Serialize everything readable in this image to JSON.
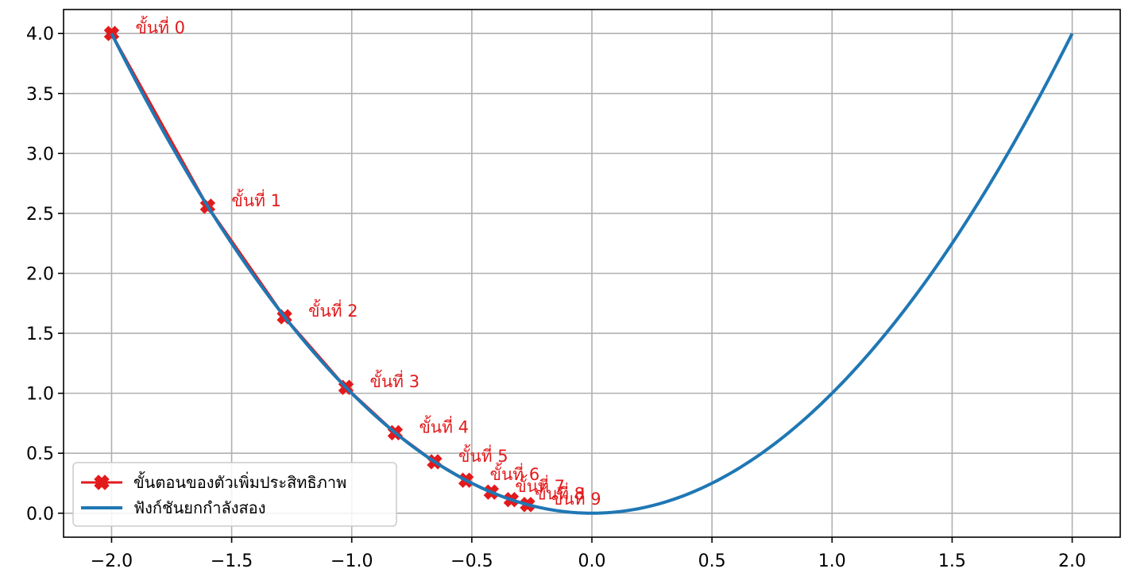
{
  "chart_data": {
    "type": "line",
    "title": "",
    "xlabel": "",
    "ylabel": "",
    "xlim": [
      -2.2,
      2.2
    ],
    "ylim": [
      -0.2,
      4.2
    ],
    "xticks": [
      -2.0,
      -1.5,
      -1.0,
      -0.5,
      0.0,
      0.5,
      1.0,
      1.5,
      2.0
    ],
    "yticks": [
      0.0,
      0.5,
      1.0,
      1.5,
      2.0,
      2.5,
      3.0,
      3.5,
      4.0
    ],
    "xtick_labels": [
      "−2.0",
      "−1.5",
      "−1.0",
      "−0.5",
      "0.0",
      "0.5",
      "1.0",
      "1.5",
      "2.0"
    ],
    "ytick_labels": [
      "0.0",
      "0.5",
      "1.0",
      "1.5",
      "2.0",
      "2.5",
      "3.0",
      "3.5",
      "4.0"
    ],
    "grid": true,
    "legend_position": "lower-left",
    "series": [
      {
        "name": "ขั้นตอนของตัวเพิ่มประสิทธิภาพ",
        "kind": "markers-line",
        "color": "#e31a1c",
        "marker": "X",
        "x": [
          -2.0,
          -1.6,
          -1.28,
          -1.024,
          -0.819,
          -0.655,
          -0.524,
          -0.419,
          -0.336,
          -0.268
        ],
        "y": [
          4.0,
          2.56,
          1.638,
          1.049,
          0.671,
          0.429,
          0.275,
          0.176,
          0.113,
          0.072
        ],
        "point_labels": [
          "ขั้นที่ 0",
          "ขั้นที่ 1",
          "ขั้นที่ 2",
          "ขั้นที่ 3",
          "ขั้นที่ 4",
          "ขั้นที่ 5",
          "ขั้นที่ 6",
          "ขั้นที่ 7",
          "ขั้นที่ 8",
          "ขั้นที่ 9"
        ]
      },
      {
        "name": "ฟังก์ชันยกกำลังสอง",
        "kind": "function",
        "function": "x^2",
        "color": "#1f77b4",
        "x_range": [
          -2.0,
          2.0
        ]
      }
    ]
  }
}
